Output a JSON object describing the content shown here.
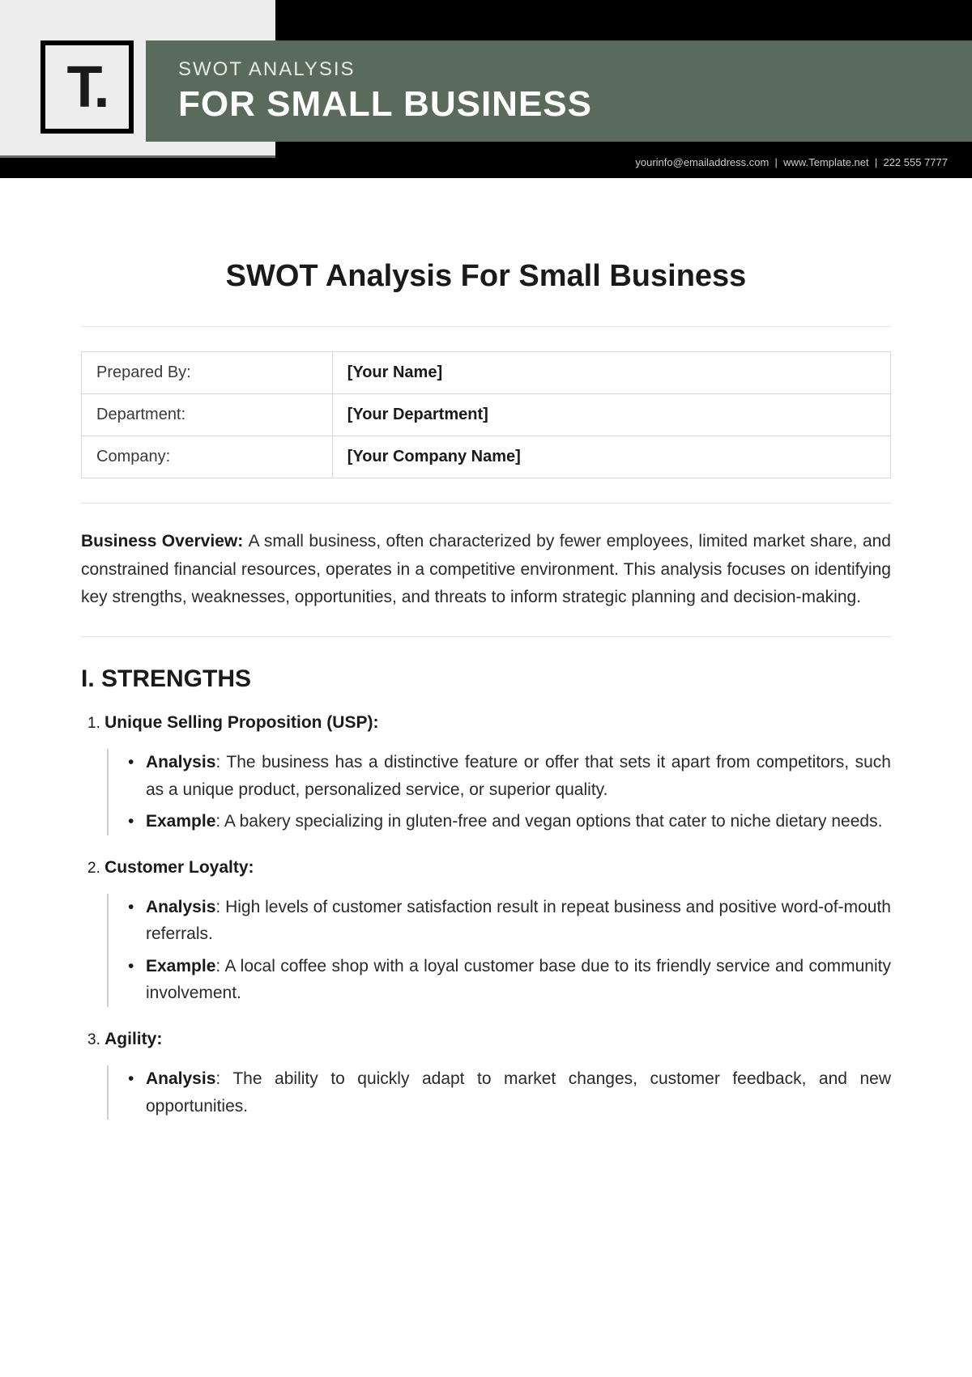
{
  "header": {
    "logo_text": "T.",
    "eyebrow": "SWOT ANALYSIS",
    "title": "FOR SMALL BUSINESS",
    "contact_email": "yourinfo@emailaddress.com",
    "contact_site": "www.Template.net",
    "contact_phone": "222 555 7777",
    "colors": {
      "strip_bg": "#000000",
      "left_bg": "#ededed",
      "green_bg": "#5a6b5c",
      "eyebrow_color": "#e8e8e8",
      "title_color": "#ffffff",
      "contact_color": "#cccccc"
    }
  },
  "doc": {
    "title": "SWOT Analysis For Small Business"
  },
  "info_table": {
    "rows": [
      {
        "label": "Prepared By:",
        "value": "[Your Name]"
      },
      {
        "label": "Department:",
        "value": "[Your Department]"
      },
      {
        "label": "Company:",
        "value": "[Your Company Name]"
      }
    ]
  },
  "overview": {
    "lead": "Business Overview: ",
    "text": "A small business, often characterized by fewer employees, limited market share, and constrained financial resources, operates in a competitive environment. This analysis focuses on identifying key strengths, weaknesses, opportunities, and threats to inform strategic planning and decision-making."
  },
  "section1": {
    "heading": "I. STRENGTHS",
    "items": [
      {
        "title": "Unique Selling Proposition (USP)",
        "analysis_label": "Analysis",
        "analysis_text": ": The business has a distinctive feature or offer that sets it apart from competitors, such as a unique product, personalized service, or superior quality.",
        "example_label": "Example",
        "example_text": ": A bakery specializing in gluten-free and vegan options that cater to niche dietary needs."
      },
      {
        "title": "Customer Loyalty",
        "analysis_label": "Analysis",
        "analysis_text": ": High levels of customer satisfaction result in repeat business and positive word-of-mouth referrals.",
        "example_label": "Example",
        "example_text": ": A local coffee shop with a loyal customer base due to its friendly service and community involvement."
      },
      {
        "title": "Agility",
        "analysis_label": "Analysis",
        "analysis_text": ": The ability to quickly adapt to market changes, customer feedback, and new opportunities.",
        "example_label": "Example",
        "example_text": ""
      }
    ]
  },
  "typography": {
    "doc_title_fontsize": 38,
    "body_fontsize": 21,
    "section_heading_fontsize": 30,
    "info_table_fontsize": 20
  }
}
